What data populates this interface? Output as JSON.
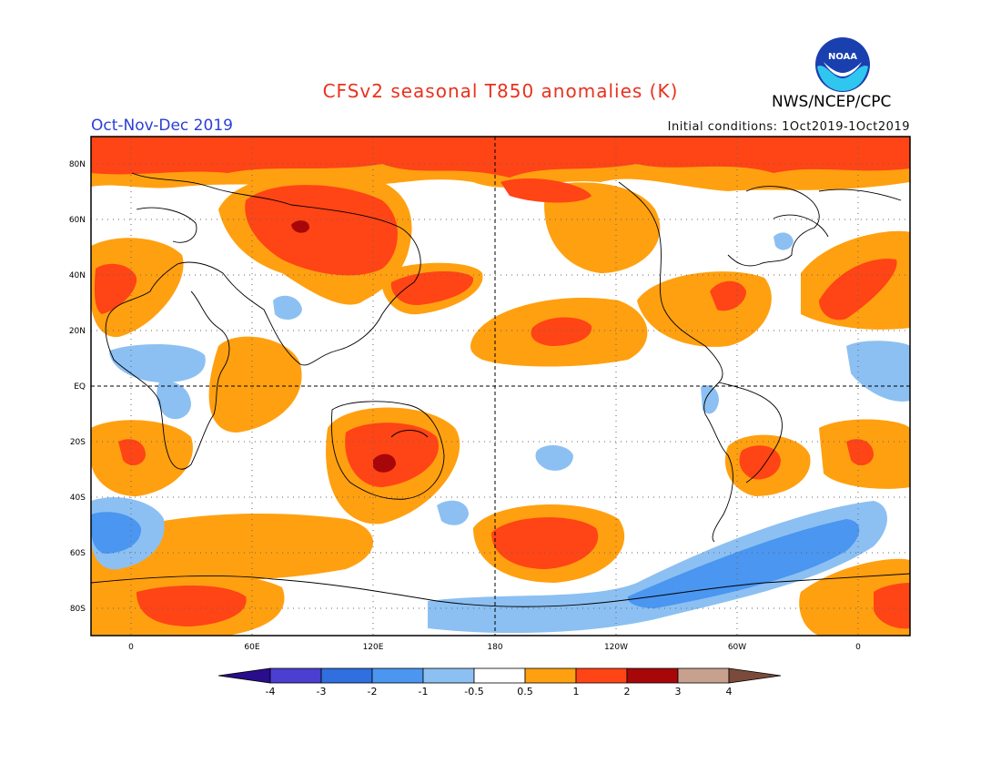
{
  "header": {
    "title": "CFSv2 seasonal T850 anomalies (K)",
    "period": "Oct-Nov-Dec 2019",
    "agency": "NWS/NCEP/CPC",
    "initial_conditions": "Initial conditions: 1Oct2019-1Oct2019",
    "logo_text": "NOAA"
  },
  "axes": {
    "lat_labels": [
      "80N",
      "60N",
      "40N",
      "20N",
      "EQ",
      "20S",
      "40S",
      "60S",
      "80S"
    ],
    "lon_labels": [
      "0",
      "60E",
      "120E",
      "180",
      "120W",
      "60W",
      "0"
    ]
  },
  "colorbar": {
    "labels": [
      "-4",
      "-3",
      "-2",
      "-1",
      "-0.5",
      "0.5",
      "1",
      "2",
      "3",
      "4"
    ],
    "colors": [
      "#2a0d8c",
      "#4a3fd0",
      "#2f6fe0",
      "#4a96f0",
      "#8cc0f2",
      "#ffffff",
      "#ffa010",
      "#ff4416",
      "#a8070a",
      "#c8a08e",
      "#7a4a3a"
    ]
  },
  "colors": {
    "land_outline": "#000000",
    "grid": "#666666"
  }
}
